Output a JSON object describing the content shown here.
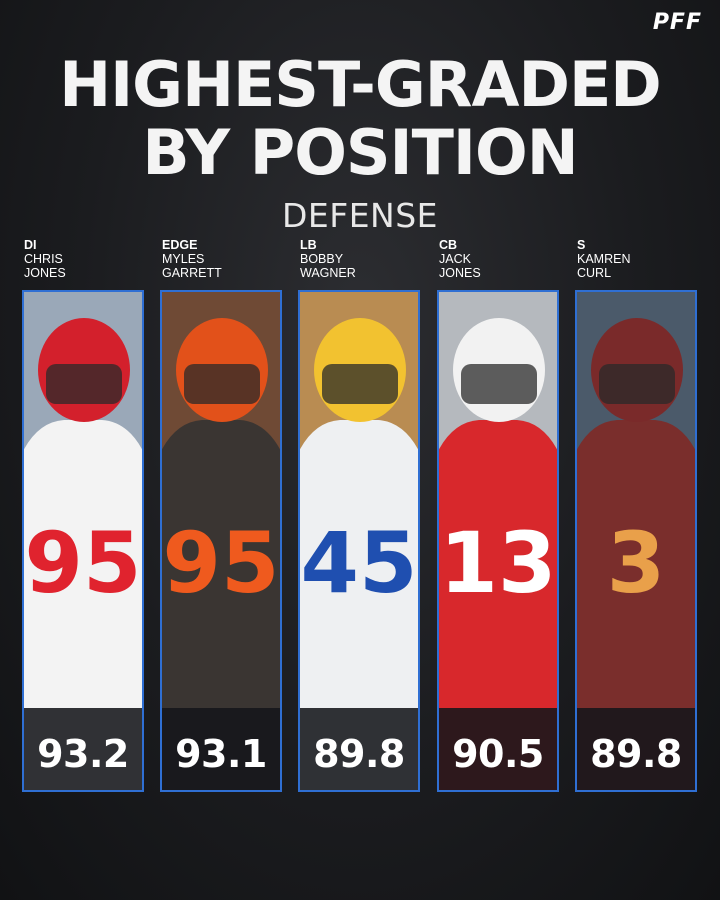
{
  "brand": {
    "logo_text": "PFF"
  },
  "header": {
    "title_line1": "HIGHEST-GRADED",
    "title_line2": "BY POSITION",
    "subtitle": "DEFENSE"
  },
  "theme": {
    "card_border": "#2f6fd3",
    "background": "#1b1c1f"
  },
  "players": [
    {
      "position": "DI",
      "name_line1": "CHRIS",
      "name_line2": "JONES",
      "grade": "93.2"
    },
    {
      "position": "EDGE",
      "name_line1": "MYLES",
      "name_line2": "GARRETT",
      "grade": "93.1"
    },
    {
      "position": "LB",
      "name_line1": "BOBBY",
      "name_line2": "WAGNER",
      "grade": "89.8"
    },
    {
      "position": "CB",
      "name_line1": "JACK",
      "name_line2": "JONES",
      "grade": "90.5"
    },
    {
      "position": "S",
      "name_line1": "KAMREN",
      "name_line2": "CURL",
      "grade": "89.8"
    }
  ],
  "jerseys": [
    {
      "number": "95",
      "colors": {
        "jersey": "#f3f3f3",
        "numeral": "#e0232e",
        "helmet": "#d3202c",
        "bg": "#9aa8b8"
      }
    },
    {
      "number": "95",
      "colors": {
        "jersey": "#3a3532",
        "numeral": "#ef5a1e",
        "helmet": "#e2511a",
        "bg": "#6f4a35"
      }
    },
    {
      "number": "45",
      "colors": {
        "jersey": "#eef0f2",
        "numeral": "#1f4fb0",
        "helmet": "#f2c230",
        "bg": "#b98c52"
      }
    },
    {
      "number": "13",
      "colors": {
        "jersey": "#d8282c",
        "numeral": "#ffffff",
        "helmet": "#f2f2f2",
        "bg": "#b5b9be"
      }
    },
    {
      "number": "3",
      "colors": {
        "jersey": "#7a2e2c",
        "numeral": "#e9a04a",
        "helmet": "#7a2a2a",
        "bg": "#4b5a6a"
      }
    }
  ]
}
